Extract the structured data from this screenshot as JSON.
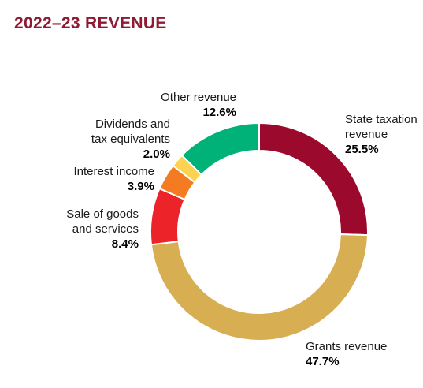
{
  "chart_data": {
    "type": "pie",
    "title": "2022–23 REVENUE",
    "donut": true,
    "legend": "none",
    "slices": [
      {
        "name_lines": [
          "State taxation",
          "revenue"
        ],
        "value": 25.5,
        "value_label": "25.5%",
        "color": "#9b0a2c"
      },
      {
        "name_lines": [
          "Grants revenue"
        ],
        "value": 47.7,
        "value_label": "47.7%",
        "color": "#d7ae52"
      },
      {
        "name_lines": [
          "Sale of goods",
          "and services"
        ],
        "value": 8.4,
        "value_label": "8.4%",
        "color": "#ec2328"
      },
      {
        "name_lines": [
          "Interest income"
        ],
        "value": 3.9,
        "value_label": "3.9%",
        "color": "#f47b22"
      },
      {
        "name_lines": [
          "Dividends and",
          "tax equivalents"
        ],
        "value": 2.0,
        "value_label": "2.0%",
        "color": "#fdd24f"
      },
      {
        "name_lines": [
          "Other revenue"
        ],
        "value": 12.6,
        "value_label": "12.6%",
        "color": "#00b278"
      }
    ]
  }
}
